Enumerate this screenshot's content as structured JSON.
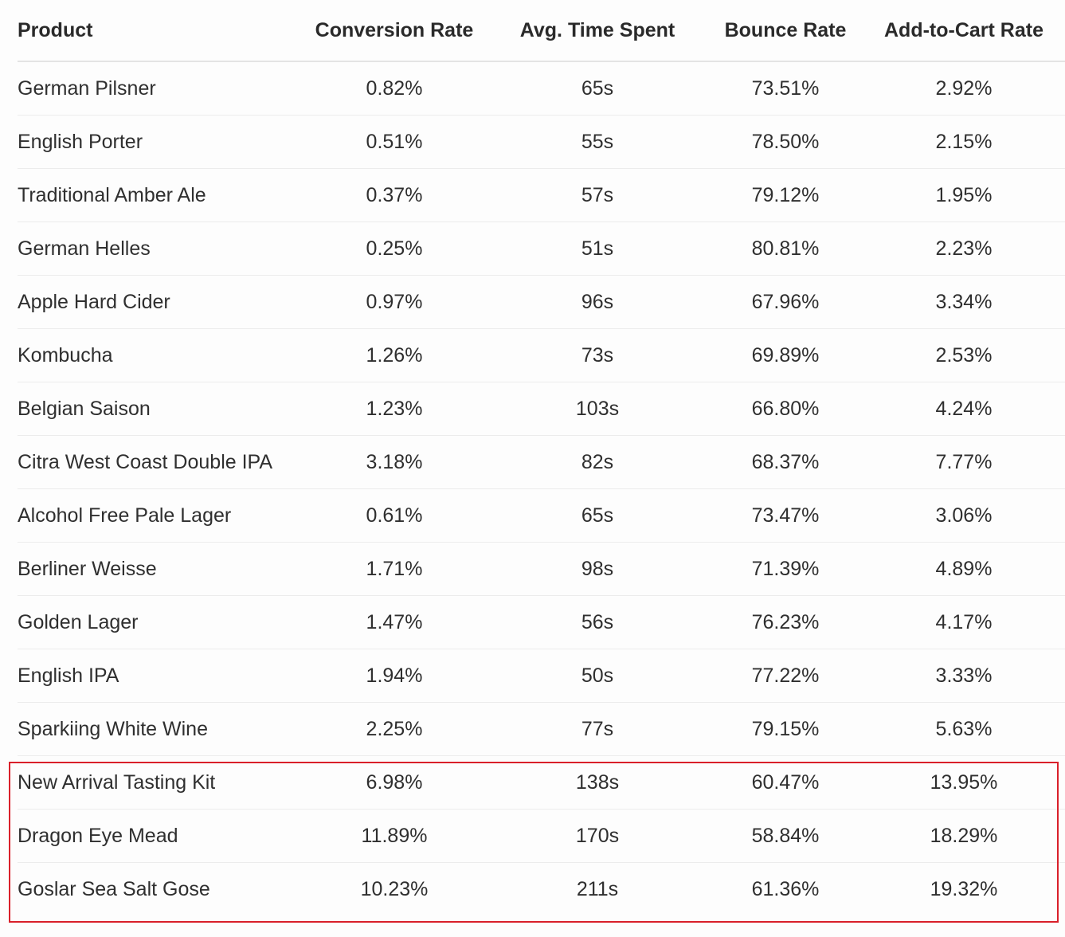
{
  "table": {
    "headers": [
      "Product",
      "Conversion Rate",
      "Avg. Time Spent",
      "Bounce Rate",
      "Add-to-Cart Rate"
    ],
    "rows": [
      [
        "German Pilsner",
        "0.82%",
        "65s",
        "73.51%",
        "2.92%"
      ],
      [
        "English Porter",
        "0.51%",
        "55s",
        "78.50%",
        "2.15%"
      ],
      [
        "Traditional Amber Ale",
        "0.37%",
        "57s",
        "79.12%",
        "1.95%"
      ],
      [
        "German Helles",
        "0.25%",
        "51s",
        "80.81%",
        "2.23%"
      ],
      [
        "Apple Hard Cider",
        "0.97%",
        "96s",
        "67.96%",
        "3.34%"
      ],
      [
        "Kombucha",
        "1.26%",
        "73s",
        "69.89%",
        "2.53%"
      ],
      [
        "Belgian Saison",
        "1.23%",
        "103s",
        "66.80%",
        "4.24%"
      ],
      [
        "Citra West Coast Double IPA",
        "3.18%",
        "82s",
        "68.37%",
        "7.77%"
      ],
      [
        "Alcohol Free Pale Lager",
        "0.61%",
        "65s",
        "73.47%",
        "3.06%"
      ],
      [
        "Berliner Weisse",
        "1.71%",
        "98s",
        "71.39%",
        "4.89%"
      ],
      [
        "Golden Lager",
        "1.47%",
        "56s",
        "76.23%",
        "4.17%"
      ],
      [
        "English IPA",
        "1.94%",
        "50s",
        "77.22%",
        "3.33%"
      ],
      [
        "Sparkiing White Wine",
        "2.25%",
        "77s",
        "79.15%",
        "5.63%"
      ],
      [
        "New Arrival Tasting Kit",
        "6.98%",
        "138s",
        "60.47%",
        "13.95%"
      ],
      [
        "Dragon Eye Mead",
        "11.89%",
        "170s",
        "58.84%",
        "18.29%"
      ],
      [
        "Goslar Sea Salt Gose",
        "10.23%",
        "211s",
        "61.36%",
        "19.32%"
      ]
    ]
  },
  "highlight": {
    "color": "#d9202a"
  }
}
